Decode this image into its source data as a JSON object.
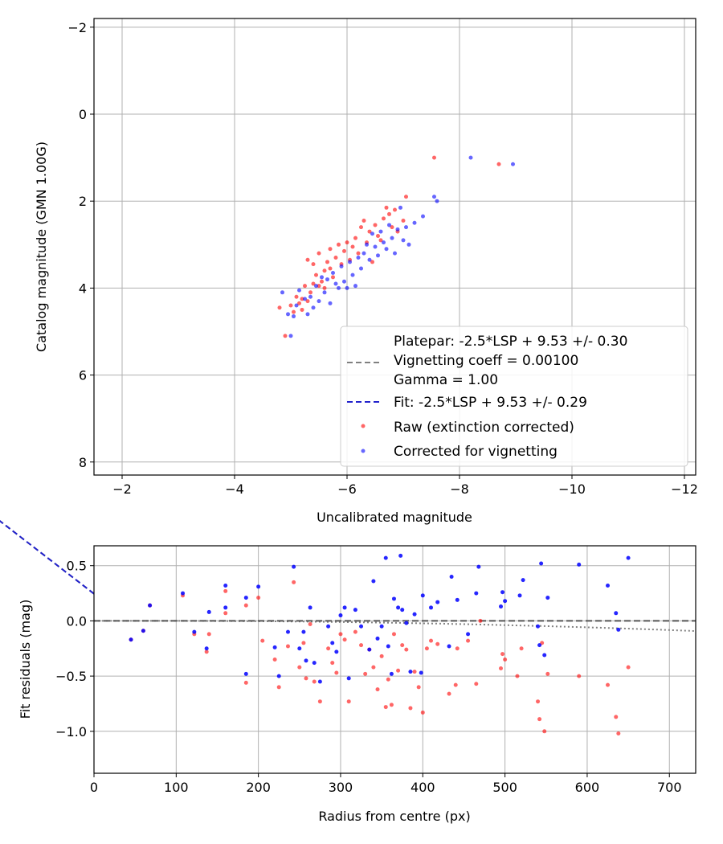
{
  "chart_data": [
    {
      "type": "scatter",
      "xlabel": "Uncalibrated magnitude",
      "ylabel": "Catalog magnitude (GMN 1.00G)",
      "xlim": [
        -1.5,
        -12.2
      ],
      "ylim": [
        8.3,
        -2.2
      ],
      "xticks": [
        -2,
        -4,
        -6,
        -8,
        -10,
        -12
      ],
      "yticks": [
        -2,
        0,
        2,
        4,
        6,
        8
      ],
      "grid": true,
      "legend_position": "bottom-right",
      "legend": {
        "platepar_lines": [
          "Platepar: -2.5*LSP + 9.53 +/- 0.30",
          "Vignetting coeff = 0.00100",
          "Gamma = 1.00"
        ],
        "fit": "Fit: -2.5*LSP + 9.53 +/- 0.29",
        "raw": "Raw (extinction corrected)",
        "corrected": "Corrected for vignetting"
      },
      "colors": {
        "raw": "#ff0000",
        "corrected": "#0000ff",
        "fit": "#2222cc",
        "platepar": "#808080"
      },
      "lines": {
        "platepar": {
          "slope": -1.0,
          "intercept": 9.53
        },
        "fit": {
          "slope": -1.0,
          "intercept": 9.53
        }
      },
      "series": [
        {
          "name": "Raw (extinction corrected)",
          "points": [
            [
              -4.8,
              4.45
            ],
            [
              -4.9,
              5.1
            ],
            [
              -5.0,
              4.4
            ],
            [
              -5.05,
              4.55
            ],
            [
              -5.1,
              4.2
            ],
            [
              -5.15,
              4.35
            ],
            [
              -5.2,
              4.25
            ],
            [
              -5.2,
              4.5
            ],
            [
              -5.25,
              3.95
            ],
            [
              -5.3,
              4.3
            ],
            [
              -5.3,
              3.35
            ],
            [
              -5.35,
              4.1
            ],
            [
              -5.4,
              3.9
            ],
            [
              -5.4,
              3.45
            ],
            [
              -5.45,
              3.7
            ],
            [
              -5.5,
              3.2
            ],
            [
              -5.5,
              3.95
            ],
            [
              -5.55,
              3.85
            ],
            [
              -5.6,
              3.6
            ],
            [
              -5.6,
              4.0
            ],
            [
              -5.65,
              3.4
            ],
            [
              -5.7,
              3.55
            ],
            [
              -5.7,
              3.1
            ],
            [
              -5.75,
              3.75
            ],
            [
              -5.8,
              3.3
            ],
            [
              -5.85,
              3.0
            ],
            [
              -5.9,
              3.45
            ],
            [
              -5.95,
              3.15
            ],
            [
              -6.0,
              2.95
            ],
            [
              -6.05,
              3.35
            ],
            [
              -6.1,
              3.05
            ],
            [
              -6.15,
              2.85
            ],
            [
              -6.2,
              3.2
            ],
            [
              -6.25,
              2.6
            ],
            [
              -6.3,
              2.45
            ],
            [
              -6.35,
              2.95
            ],
            [
              -6.4,
              2.7
            ],
            [
              -6.45,
              3.4
            ],
            [
              -6.5,
              2.55
            ],
            [
              -6.55,
              2.8
            ],
            [
              -6.6,
              2.9
            ],
            [
              -6.65,
              2.4
            ],
            [
              -6.7,
              2.15
            ],
            [
              -6.75,
              2.3
            ],
            [
              -6.8,
              2.6
            ],
            [
              -6.85,
              2.2
            ],
            [
              -6.9,
              2.7
            ],
            [
              -7.0,
              2.45
            ],
            [
              -7.05,
              1.9
            ],
            [
              -7.55,
              1.0
            ],
            [
              -8.7,
              1.15
            ]
          ]
        },
        {
          "name": "Corrected for vignetting",
          "points": [
            [
              -4.85,
              4.1
            ],
            [
              -4.95,
              4.6
            ],
            [
              -5.0,
              5.1
            ],
            [
              -5.05,
              4.65
            ],
            [
              -5.1,
              4.4
            ],
            [
              -5.15,
              4.05
            ],
            [
              -5.25,
              4.25
            ],
            [
              -5.3,
              4.6
            ],
            [
              -5.35,
              4.2
            ],
            [
              -5.4,
              4.45
            ],
            [
              -5.45,
              3.95
            ],
            [
              -5.5,
              4.3
            ],
            [
              -5.55,
              3.75
            ],
            [
              -5.6,
              4.1
            ],
            [
              -5.65,
              3.8
            ],
            [
              -5.7,
              4.35
            ],
            [
              -5.75,
              3.65
            ],
            [
              -5.8,
              3.9
            ],
            [
              -5.85,
              4.0
            ],
            [
              -5.9,
              3.5
            ],
            [
              -5.95,
              3.85
            ],
            [
              -6.0,
              4.0
            ],
            [
              -6.05,
              3.4
            ],
            [
              -6.1,
              3.7
            ],
            [
              -6.15,
              3.95
            ],
            [
              -6.2,
              3.3
            ],
            [
              -6.25,
              3.55
            ],
            [
              -6.3,
              3.2
            ],
            [
              -6.35,
              3.0
            ],
            [
              -6.4,
              3.35
            ],
            [
              -6.45,
              2.75
            ],
            [
              -6.5,
              3.05
            ],
            [
              -6.55,
              3.25
            ],
            [
              -6.6,
              2.7
            ],
            [
              -6.65,
              2.95
            ],
            [
              -6.7,
              3.1
            ],
            [
              -6.75,
              2.55
            ],
            [
              -6.8,
              2.85
            ],
            [
              -6.85,
              3.2
            ],
            [
              -6.9,
              2.65
            ],
            [
              -6.95,
              2.15
            ],
            [
              -7.0,
              2.9
            ],
            [
              -7.05,
              2.6
            ],
            [
              -7.1,
              3.0
            ],
            [
              -7.2,
              2.5
            ],
            [
              -7.35,
              2.35
            ],
            [
              -7.55,
              1.9
            ],
            [
              -7.6,
              2.0
            ],
            [
              -8.2,
              1.0
            ],
            [
              -8.95,
              1.15
            ]
          ]
        }
      ]
    },
    {
      "type": "scatter",
      "xlabel": "Radius from centre (px)",
      "ylabel": "Fit residuals (mag)",
      "xlim": [
        0,
        732
      ],
      "ylim": [
        -1.38,
        0.68
      ],
      "xticks": [
        0,
        100,
        200,
        300,
        400,
        500,
        600,
        700
      ],
      "yticks": [
        0.5,
        0.0,
        -0.5,
        -1.0
      ],
      "ytick_labels": [
        "0.5",
        "0.0",
        "−0.5",
        "−1.0"
      ],
      "grid": true,
      "colors": {
        "raw": "#ff0000",
        "corrected": "#0000ff",
        "zero_line": "#555555",
        "vignetting_curve": "#808080"
      },
      "lines": {
        "zero": {
          "y": 0.0
        },
        "vignetting_curve": {
          "coeff": 0.001,
          "flat_until": 80
        }
      },
      "series": [
        {
          "name": "Raw (extinction corrected)",
          "points": [
            [
              45,
              -0.17
            ],
            [
              60,
              -0.09
            ],
            [
              68,
              0.14
            ],
            [
              108,
              0.23
            ],
            [
              122,
              -0.12
            ],
            [
              137,
              -0.28
            ],
            [
              140,
              -0.12
            ],
            [
              160,
              0.07
            ],
            [
              160,
              0.27
            ],
            [
              185,
              -0.56
            ],
            [
              185,
              0.14
            ],
            [
              200,
              0.21
            ],
            [
              205,
              -0.18
            ],
            [
              220,
              -0.35
            ],
            [
              225,
              -0.6
            ],
            [
              236,
              -0.23
            ],
            [
              243,
              0.35
            ],
            [
              250,
              -0.42
            ],
            [
              255,
              -0.2
            ],
            [
              258,
              -0.52
            ],
            [
              263,
              -0.03
            ],
            [
              268,
              -0.55
            ],
            [
              275,
              -0.73
            ],
            [
              285,
              -0.25
            ],
            [
              290,
              -0.38
            ],
            [
              295,
              -0.47
            ],
            [
              300,
              -0.12
            ],
            [
              305,
              -0.17
            ],
            [
              310,
              -0.73
            ],
            [
              318,
              -0.1
            ],
            [
              325,
              -0.22
            ],
            [
              330,
              -0.48
            ],
            [
              335,
              -0.26
            ],
            [
              340,
              -0.42
            ],
            [
              345,
              -0.62
            ],
            [
              350,
              -0.32
            ],
            [
              355,
              -0.78
            ],
            [
              358,
              -0.53
            ],
            [
              362,
              -0.76
            ],
            [
              365,
              -0.12
            ],
            [
              370,
              -0.45
            ],
            [
              375,
              -0.22
            ],
            [
              380,
              -0.26
            ],
            [
              385,
              -0.79
            ],
            [
              390,
              -0.46
            ],
            [
              395,
              -0.6
            ],
            [
              400,
              -0.83
            ],
            [
              405,
              -0.25
            ],
            [
              410,
              -0.18
            ],
            [
              418,
              -0.21
            ],
            [
              432,
              -0.66
            ],
            [
              440,
              -0.58
            ],
            [
              442,
              -0.25
            ],
            [
              455,
              -0.18
            ],
            [
              465,
              -0.57
            ],
            [
              470,
              0.0
            ],
            [
              495,
              -0.43
            ],
            [
              497,
              -0.3
            ],
            [
              500,
              -0.35
            ],
            [
              515,
              -0.5
            ],
            [
              520,
              -0.25
            ],
            [
              540,
              -0.73
            ],
            [
              542,
              -0.89
            ],
            [
              545,
              -0.2
            ],
            [
              548,
              -1.0
            ],
            [
              552,
              -0.48
            ],
            [
              590,
              -0.5
            ],
            [
              625,
              -0.58
            ],
            [
              635,
              -0.87
            ],
            [
              638,
              -1.02
            ],
            [
              650,
              -0.42
            ]
          ]
        },
        {
          "name": "Corrected for vignetting",
          "points": [
            [
              45,
              -0.17
            ],
            [
              60,
              -0.09
            ],
            [
              68,
              0.14
            ],
            [
              108,
              0.25
            ],
            [
              122,
              -0.1
            ],
            [
              137,
              -0.25
            ],
            [
              140,
              0.08
            ],
            [
              160,
              0.12
            ],
            [
              160,
              0.32
            ],
            [
              185,
              -0.48
            ],
            [
              185,
              0.21
            ],
            [
              200,
              0.31
            ],
            [
              220,
              -0.24
            ],
            [
              225,
              -0.5
            ],
            [
              236,
              -0.1
            ],
            [
              243,
              0.49
            ],
            [
              250,
              -0.25
            ],
            [
              255,
              -0.1
            ],
            [
              258,
              -0.36
            ],
            [
              263,
              0.12
            ],
            [
              268,
              -0.38
            ],
            [
              275,
              -0.55
            ],
            [
              285,
              -0.05
            ],
            [
              290,
              -0.2
            ],
            [
              295,
              -0.28
            ],
            [
              300,
              0.05
            ],
            [
              305,
              0.12
            ],
            [
              310,
              -0.52
            ],
            [
              318,
              0.1
            ],
            [
              325,
              -0.05
            ],
            [
              335,
              -0.26
            ],
            [
              340,
              0.36
            ],
            [
              345,
              -0.16
            ],
            [
              350,
              -0.05
            ],
            [
              355,
              0.57
            ],
            [
              358,
              -0.23
            ],
            [
              362,
              -0.48
            ],
            [
              365,
              0.2
            ],
            [
              370,
              0.12
            ],
            [
              373,
              0.59
            ],
            [
              375,
              0.1
            ],
            [
              380,
              -0.02
            ],
            [
              385,
              -0.46
            ],
            [
              390,
              0.06
            ],
            [
              398,
              -0.47
            ],
            [
              400,
              0.23
            ],
            [
              410,
              0.12
            ],
            [
              418,
              0.17
            ],
            [
              432,
              -0.23
            ],
            [
              435,
              0.4
            ],
            [
              442,
              0.19
            ],
            [
              455,
              -0.12
            ],
            [
              465,
              0.25
            ],
            [
              468,
              0.49
            ],
            [
              495,
              0.13
            ],
            [
              497,
              0.26
            ],
            [
              500,
              0.18
            ],
            [
              518,
              0.23
            ],
            [
              522,
              0.37
            ],
            [
              540,
              -0.05
            ],
            [
              542,
              -0.22
            ],
            [
              544,
              0.52
            ],
            [
              548,
              -0.31
            ],
            [
              552,
              0.21
            ],
            [
              590,
              0.51
            ],
            [
              625,
              0.32
            ],
            [
              635,
              0.07
            ],
            [
              638,
              -0.08
            ],
            [
              650,
              0.57
            ]
          ]
        }
      ]
    }
  ]
}
